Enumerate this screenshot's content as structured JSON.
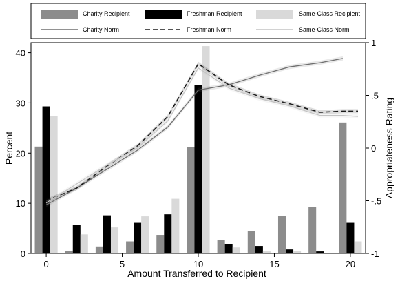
{
  "chart_data": {
    "type": "bar",
    "xlabel": "Amount Transferred to Recipient",
    "ylabel_left": "Percent",
    "ylabel_right": "Appropriateness Rating",
    "xlim": [
      -1,
      21
    ],
    "ylim_left": [
      0,
      42
    ],
    "ylim_right": [
      -1,
      1
    ],
    "x_ticks": [
      0,
      5,
      10,
      15,
      20
    ],
    "y_ticks_left": [
      0,
      10,
      20,
      30,
      40
    ],
    "y_ticks_right": [
      {
        "value": -1,
        "label": "-1"
      },
      {
        "value": -0.5,
        "label": "-.5"
      },
      {
        "value": 0,
        "label": "0"
      },
      {
        "value": 0.5,
        "label": ".5"
      },
      {
        "value": 1,
        "label": "1"
      }
    ],
    "legend_position": "top",
    "bar_width": 0.5,
    "bar_series": [
      {
        "name": "Charity Recipient",
        "color": "#8c8c8c",
        "offset": -0.5,
        "x": [
          0,
          2,
          4,
          6,
          8,
          10,
          12,
          14,
          16,
          18,
          20
        ],
        "values": [
          21.3,
          0.5,
          1.4,
          2.4,
          3.7,
          21.2,
          2.7,
          4.4,
          7.5,
          9.2,
          26.1
        ]
      },
      {
        "name": "Freshman Recipient",
        "color": "#000000",
        "offset": 0,
        "x": [
          0,
          2,
          4,
          6,
          8,
          10,
          12,
          14,
          16,
          18,
          20
        ],
        "values": [
          29.3,
          5.7,
          7.6,
          6.1,
          7.8,
          33.5,
          1.9,
          1.5,
          0.8,
          0.4,
          6.1
        ]
      },
      {
        "name": "Same-Class Recipient",
        "color": "#d9d9d9",
        "offset": 0.5,
        "x": [
          0,
          2,
          4,
          6,
          8,
          10,
          12,
          14,
          16,
          18,
          20
        ],
        "values": [
          27.4,
          3.8,
          5.2,
          7.4,
          10.9,
          41.3,
          1.2,
          0.4,
          0.5,
          0.1,
          2.4
        ]
      }
    ],
    "line_series": [
      {
        "name": "Charity Norm",
        "color": "#6e6e6e",
        "dash": "",
        "width": 1.3,
        "x": [
          0,
          2,
          4,
          6,
          8,
          10,
          12,
          14,
          16,
          18,
          19.5
        ],
        "y": [
          -0.54,
          -0.38,
          -0.2,
          -0.02,
          0.2,
          0.55,
          0.6,
          0.69,
          0.77,
          0.81,
          0.85
        ]
      },
      {
        "name": "Freshman Norm",
        "color": "#1a1a1a",
        "dash": "7,4",
        "width": 1.6,
        "x": [
          0,
          2,
          4,
          6,
          8,
          10,
          12,
          14,
          16,
          18,
          19.5,
          20.5
        ],
        "y": [
          -0.5,
          -0.38,
          -0.17,
          0.02,
          0.3,
          0.8,
          0.6,
          0.49,
          0.42,
          0.34,
          0.35,
          0.35
        ]
      },
      {
        "name": "Same-Class Norm",
        "color": "#c4c4c4",
        "dash": "",
        "width": 1.3,
        "x": [
          0,
          2,
          4,
          6,
          8,
          10,
          12,
          14,
          16,
          18,
          19.5,
          20.5
        ],
        "y": [
          -0.52,
          -0.34,
          -0.16,
          0.0,
          0.26,
          0.76,
          0.57,
          0.47,
          0.4,
          0.31,
          0.31,
          0.3
        ]
      }
    ],
    "legend": [
      {
        "label": "Charity Recipient",
        "kind": "box",
        "color": "#8c8c8c"
      },
      {
        "label": "Freshman Recipient",
        "kind": "box",
        "color": "#000000"
      },
      {
        "label": "Same-Class Recipient",
        "kind": "box",
        "color": "#d9d9d9"
      },
      {
        "label": "Charity Norm",
        "kind": "line",
        "color": "#6e6e6e",
        "dash": ""
      },
      {
        "label": "Freshman Norm",
        "kind": "line",
        "color": "#1a1a1a",
        "dash": "7,4"
      },
      {
        "label": "Same-Class Norm",
        "kind": "line",
        "color": "#c4c4c4",
        "dash": ""
      }
    ]
  }
}
